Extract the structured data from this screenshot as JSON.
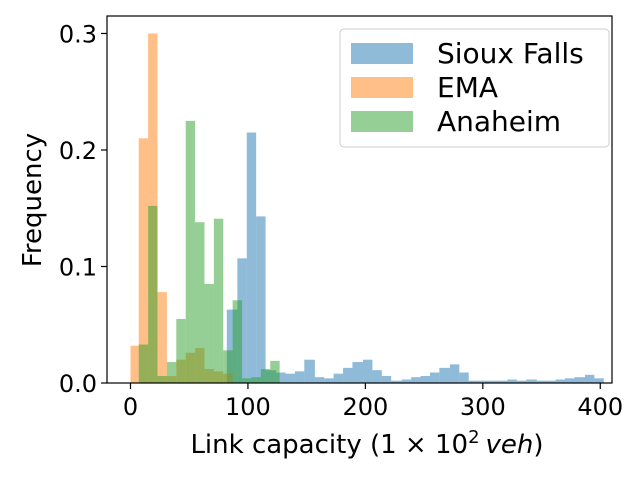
{
  "chart_data": {
    "type": "histogram",
    "xlabel_prefix": "Link capacity (",
    "xlabel_math": "1 × 10",
    "xlabel_sup": "2",
    "xlabel_unit": "veh",
    "xlabel_suffix": ")",
    "ylabel": "Frequency",
    "xlim": [
      -20,
      410
    ],
    "ylim": [
      0,
      0.315
    ],
    "xticks": [
      0,
      100,
      200,
      300,
      400
    ],
    "yticks": [
      0.0,
      0.1,
      0.2,
      0.3
    ],
    "ytick_labels": [
      "0.0",
      "0.1",
      "0.2",
      "0.3"
    ],
    "legend_position": "top-right",
    "series": [
      {
        "name": "Sioux Falls",
        "color": "#1f77b4",
        "alpha": 0.5,
        "bins": [
          [
            82,
            91,
            0.063
          ],
          [
            91,
            99,
            0.107
          ],
          [
            99,
            107,
            0.215
          ],
          [
            107,
            115,
            0.143
          ],
          [
            115,
            124,
            0.011
          ],
          [
            124,
            132,
            0.009
          ],
          [
            132,
            140,
            0.008
          ],
          [
            140,
            148,
            0.01
          ],
          [
            148,
            157,
            0.02
          ],
          [
            157,
            165,
            0.005
          ],
          [
            165,
            173,
            0.004
          ],
          [
            173,
            181,
            0.008
          ],
          [
            181,
            189,
            0.013
          ],
          [
            189,
            198,
            0.018
          ],
          [
            198,
            206,
            0.02
          ],
          [
            206,
            214,
            0.011
          ],
          [
            214,
            222,
            0.006
          ],
          [
            222,
            231,
            0.002
          ],
          [
            231,
            239,
            0.003
          ],
          [
            239,
            247,
            0.005
          ],
          [
            247,
            255,
            0.006
          ],
          [
            255,
            263,
            0.009
          ],
          [
            263,
            272,
            0.013
          ],
          [
            272,
            280,
            0.016
          ],
          [
            280,
            288,
            0.009
          ],
          [
            288,
            296,
            0.002
          ],
          [
            296,
            304,
            0.002
          ],
          [
            304,
            313,
            0.002
          ],
          [
            313,
            321,
            0.002
          ],
          [
            321,
            329,
            0.003
          ],
          [
            329,
            337,
            0.002
          ],
          [
            337,
            346,
            0.003
          ],
          [
            346,
            354,
            0.002
          ],
          [
            354,
            362,
            0.002
          ],
          [
            362,
            370,
            0.003
          ],
          [
            370,
            378,
            0.004
          ],
          [
            378,
            387,
            0.005
          ],
          [
            387,
            395,
            0.007
          ],
          [
            395,
            403,
            0.004
          ]
        ]
      },
      {
        "name": "EMA",
        "color": "#ff7f0e",
        "alpha": 0.5,
        "bins": [
          [
            0,
            7,
            0.032
          ],
          [
            7,
            15,
            0.21
          ],
          [
            15,
            23,
            0.3
          ],
          [
            23,
            31,
            0.078
          ],
          [
            31,
            39,
            0.006
          ],
          [
            39,
            47,
            0.02
          ],
          [
            47,
            55,
            0.026
          ],
          [
            55,
            63,
            0.03
          ],
          [
            63,
            71,
            0.012
          ],
          [
            71,
            79,
            0.01
          ],
          [
            79,
            87,
            0.008
          ]
        ]
      },
      {
        "name": "Anaheim",
        "color": "#2ca02c",
        "alpha": 0.5,
        "bins": [
          [
            7,
            15,
            0.033
          ],
          [
            15,
            23,
            0.152
          ],
          [
            23,
            31,
            0.006
          ],
          [
            31,
            39,
            0.018
          ],
          [
            39,
            47,
            0.055
          ],
          [
            47,
            55,
            0.225
          ],
          [
            55,
            63,
            0.138
          ],
          [
            63,
            71,
            0.085
          ],
          [
            71,
            79,
            0.141
          ],
          [
            79,
            87,
            0.028
          ],
          [
            87,
            95,
            0.071
          ],
          [
            95,
            103,
            0.004
          ],
          [
            103,
            111,
            0.005
          ],
          [
            111,
            119,
            0.012
          ],
          [
            119,
            127,
            0.019
          ]
        ]
      }
    ]
  }
}
